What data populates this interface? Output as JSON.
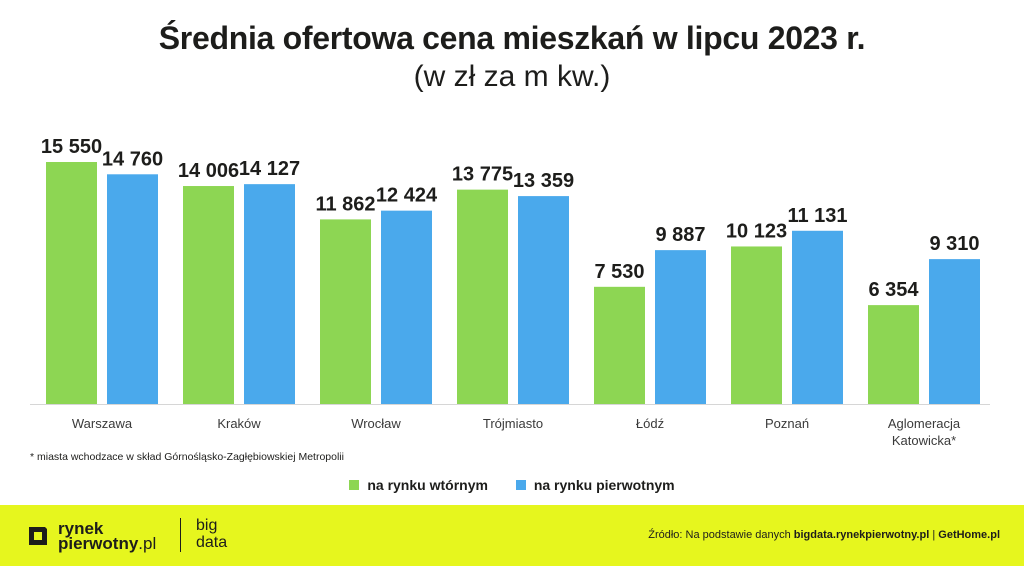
{
  "title": "Średnia ofertowa cena mieszkań w lipcu 2023 r.",
  "subtitle": "(w zł za m kw.)",
  "colors": {
    "secondary": "#8dd653",
    "primary": "#4aa9ec",
    "footer_bg": "#e6f61e"
  },
  "chart_data": {
    "type": "bar",
    "categories": [
      "Warszawa",
      "Kraków",
      "Wrocław",
      "Trójmiasto",
      "Łódź",
      "Poznań",
      "Aglomeracja Katowicka*"
    ],
    "category_lines": [
      [
        "Warszawa"
      ],
      [
        "Kraków"
      ],
      [
        "Wrocław"
      ],
      [
        "Trójmiasto"
      ],
      [
        "Łódź"
      ],
      [
        "Poznań"
      ],
      [
        "Aglomeracja",
        "Katowicka*"
      ]
    ],
    "series": [
      {
        "name": "na rynku wtórnym",
        "color": "#8dd653",
        "values": [
          15550,
          14006,
          11862,
          13775,
          7530,
          10123,
          6354
        ],
        "labels": [
          "15 550",
          "14 006",
          "11 862",
          "13 775",
          "7 530",
          "10 123",
          "6 354"
        ]
      },
      {
        "name": "na rynku pierwotnym",
        "color": "#4aa9ec",
        "values": [
          14760,
          14127,
          12424,
          13359,
          9887,
          11131,
          9310
        ],
        "labels": [
          "14 760",
          "14 127",
          "12 424",
          "13 359",
          "9 887",
          "11 131",
          "9 310"
        ]
      }
    ],
    "ylim": [
      0,
      15550
    ],
    "grid": false,
    "legend_position": "bottom"
  },
  "footnote": "* miasta wchodzace w skład Górnośląsko-Zagłębiowskiej Metropolii",
  "legend": {
    "items": [
      {
        "label": "na rynku wtórnym",
        "color": "#8dd653"
      },
      {
        "label": "na rynku pierwotnym",
        "color": "#4aa9ec"
      }
    ]
  },
  "footer": {
    "logo_line1": "rynek",
    "logo_line2": "pierwotny",
    "logo_line2_suffix": ".pl",
    "bigdata_line1": "big",
    "bigdata_line2": "data",
    "source_prefix": "Źródło: Na podstawie danych ",
    "source_link1": "bigdata.rynekpierwotny.pl",
    "source_sep": " | ",
    "source_link2": "GetHome.pl"
  }
}
